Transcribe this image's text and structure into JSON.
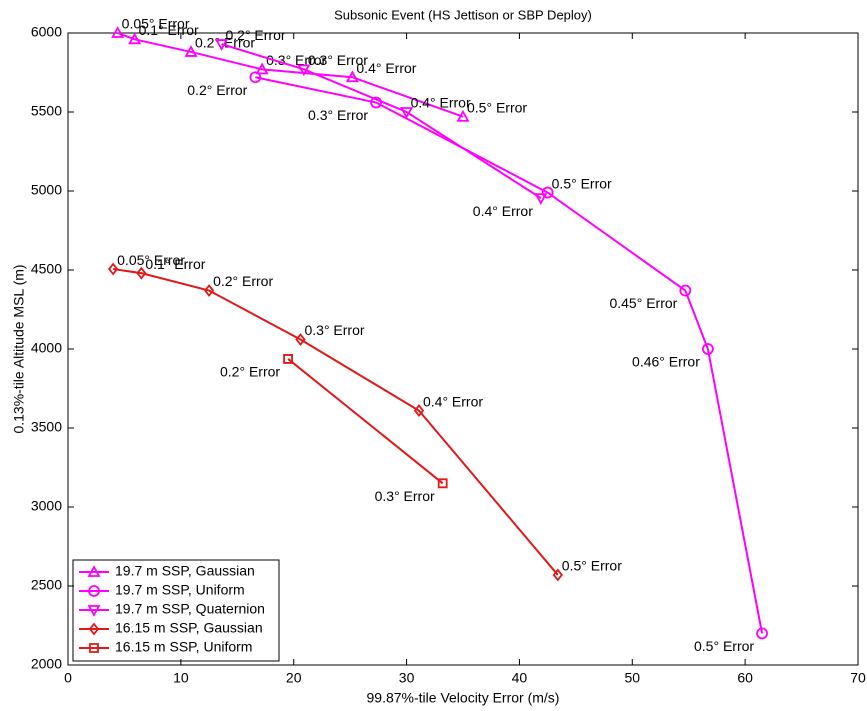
{
  "chart_data": {
    "type": "line",
    "title": "Subsonic Event (HS Jettison or SBP Deploy)",
    "x_label": "99.87%-tile Velocity Error (m/s)",
    "y_label": "0.13%-tile Altitude MSL (m)",
    "xlim": [
      0,
      70
    ],
    "xticks": [
      0,
      10,
      20,
      30,
      40,
      50,
      60,
      70
    ],
    "ylim": [
      2000,
      6000
    ],
    "yticks": [
      2000,
      2500,
      3000,
      3500,
      4000,
      4500,
      5000,
      5500,
      6000
    ],
    "legend": "lower left",
    "series": [
      {
        "name": "19.7 m SSP, Gaussian",
        "color": "#ff00ff",
        "marker": "triangle-up",
        "x": [
          4.4,
          5.9,
          10.9,
          17.2,
          25.2,
          35.0
        ],
        "values": [
          6000,
          5960,
          5880,
          5770,
          5720,
          5470
        ],
        "point_labels": [
          "0.05° Error",
          "0.1° Error",
          "0.2° Error",
          "0.3° Error",
          "0.4° Error",
          "0.5° Error"
        ]
      },
      {
        "name": "19.7 m SSP, Uniform",
        "color": "#ff00ff",
        "marker": "circle",
        "x": [
          16.6,
          27.3,
          42.5,
          54.7,
          56.7,
          61.5
        ],
        "values": [
          5720,
          5560,
          4990,
          4370,
          4000,
          2200
        ],
        "point_labels": [
          "0.2° Error",
          "0.3° Error",
          "0.5° Error",
          "0.45° Error",
          "0.46° Error",
          "0.5° Error"
        ]
      },
      {
        "name": "19.7 m SSP, Quaternion",
        "color": "#ff00ff",
        "marker": "triangle-down",
        "x": [
          13.6,
          20.9,
          30.0,
          41.9
        ],
        "values": [
          5930,
          5770,
          5500,
          4955
        ],
        "point_labels": [
          "0.2° Error",
          "0.3° Error",
          "0.4° Error",
          "0.4° Error"
        ]
      },
      {
        "name": "16.15 m SSP, Gaussian",
        "color": "#e01818",
        "marker": "diamond",
        "x": [
          4.0,
          6.5,
          12.5,
          20.6,
          31.1,
          43.4
        ],
        "values": [
          4506,
          4480,
          4370,
          4060,
          3610,
          2570
        ],
        "point_labels": [
          "0.05° Error",
          "0.1° Error",
          "0.2° Error",
          "0.3° Error",
          "0.4° Error",
          "0.5° Error"
        ]
      },
      {
        "name": "16.15 m SSP, Uniform",
        "color": "#e01818",
        "marker": "square",
        "x": [
          19.5,
          33.2
        ],
        "values": [
          3937,
          3150
        ],
        "point_labels": [
          "0.2° Error",
          "0.3° Error"
        ]
      }
    ]
  }
}
